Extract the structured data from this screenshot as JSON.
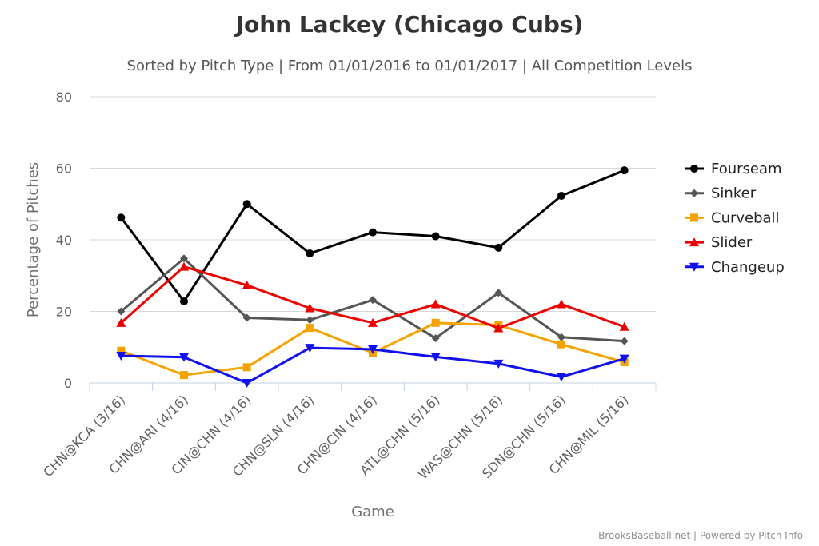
{
  "chart_data": {
    "type": "line",
    "title": "John Lackey (Chicago Cubs)",
    "subtitle": "Sorted by Pitch Type | From 01/01/2016 to 01/01/2017 | All Competition Levels",
    "xlabel": "Game",
    "ylabel": "Percentage of Pitches",
    "categories": [
      "CHN@KCA (3/16)",
      "CHN@ARI (4/16)",
      "CIN@CHN (4/16)",
      "CHN@SLN (4/16)",
      "CHN@CIN (4/16)",
      "ATL@CHN (5/16)",
      "WAS@CHN (5/16)",
      "SDN@CHN (5/16)",
      "CHN@MIL (5/16)"
    ],
    "ylim": [
      0,
      80
    ],
    "yticks": [
      0,
      20,
      40,
      60,
      80
    ],
    "grid": true,
    "legend_position": "right",
    "series": [
      {
        "name": "Fourseam",
        "color": "#000000",
        "marker": "circle",
        "values": [
          46.2,
          22.8,
          50.0,
          36.2,
          42.1,
          41.0,
          37.8,
          52.3,
          59.4
        ]
      },
      {
        "name": "Sinker",
        "color": "#555555",
        "marker": "diamond",
        "values": [
          20.0,
          34.8,
          18.2,
          17.6,
          23.2,
          12.5,
          25.2,
          12.8,
          11.7
        ]
      },
      {
        "name": "Curveball",
        "color": "#f5a300",
        "marker": "square",
        "values": [
          9.0,
          2.2,
          4.4,
          15.4,
          8.4,
          16.8,
          16.2,
          10.8,
          5.8
        ]
      },
      {
        "name": "Slider",
        "color": "#ee0000",
        "marker": "triangle",
        "values": [
          16.8,
          32.5,
          27.3,
          20.9,
          16.8,
          22.0,
          15.3,
          22.0,
          15.7
        ]
      },
      {
        "name": "Changeup",
        "color": "#1111ee",
        "marker": "triangle-down",
        "values": [
          7.6,
          7.2,
          0.0,
          9.8,
          9.4,
          7.3,
          5.4,
          1.7,
          6.8
        ]
      }
    ]
  },
  "credits": "BrooksBaseball.net | Powered by Pitch Info"
}
